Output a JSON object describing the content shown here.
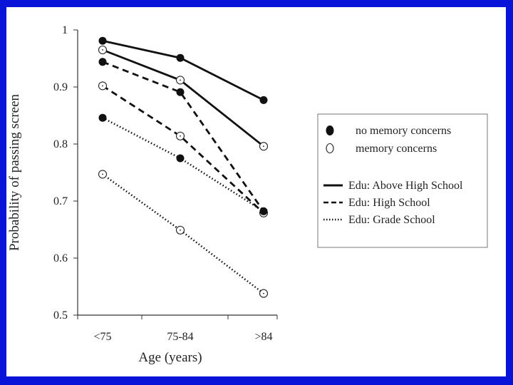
{
  "chart_data": {
    "type": "line",
    "title": "",
    "xlabel": "Age (years)",
    "ylabel": "Probability of passing screen",
    "categories": [
      "<75",
      "75-84",
      ">84"
    ],
    "ylim": [
      0.5,
      1.0
    ],
    "yticks": [
      "0.5",
      "0.6",
      "0.7",
      "0.8",
      "0.9",
      "1"
    ],
    "ytick_values": [
      0.5,
      0.6,
      0.7,
      0.8,
      0.9,
      1.0
    ],
    "grid": false,
    "legend_position": "right",
    "series": [
      {
        "edu": "Above High School",
        "memory": "no memory concerns",
        "line_style": "solid",
        "marker": "filled",
        "values": [
          0.981,
          0.951,
          0.877
        ]
      },
      {
        "edu": "Above High School",
        "memory": "memory concerns",
        "line_style": "solid",
        "marker": "open",
        "values": [
          0.965,
          0.912,
          0.796
        ]
      },
      {
        "edu": "High School",
        "memory": "no memory concerns",
        "line_style": "dashed",
        "marker": "filled",
        "values": [
          0.944,
          0.891,
          0.682
        ]
      },
      {
        "edu": "High School",
        "memory": "memory concerns",
        "line_style": "dashed",
        "marker": "open",
        "values": [
          0.902,
          0.814,
          0.679
        ]
      },
      {
        "edu": "Grade School",
        "memory": "no memory concerns",
        "line_style": "dotted",
        "marker": "filled",
        "values": [
          0.846,
          0.775,
          0.682
        ]
      },
      {
        "edu": "Grade School",
        "memory": "memory concerns",
        "line_style": "dotted",
        "marker": "open",
        "values": [
          0.747,
          0.649,
          0.538
        ]
      }
    ],
    "legend": {
      "markers": [
        {
          "label": "no memory concerns",
          "marker": "filled"
        },
        {
          "label": "memory concerns",
          "marker": "open"
        }
      ],
      "lines": [
        {
          "label": "Edu: Above High School",
          "line_style": "solid"
        },
        {
          "label": "Edu: High School",
          "line_style": "dashed"
        },
        {
          "label": "Edu: Grade School",
          "line_style": "dotted"
        }
      ]
    },
    "colors": {
      "line": "#111111",
      "background": "#ffffff",
      "border": "#0a14d8"
    }
  }
}
